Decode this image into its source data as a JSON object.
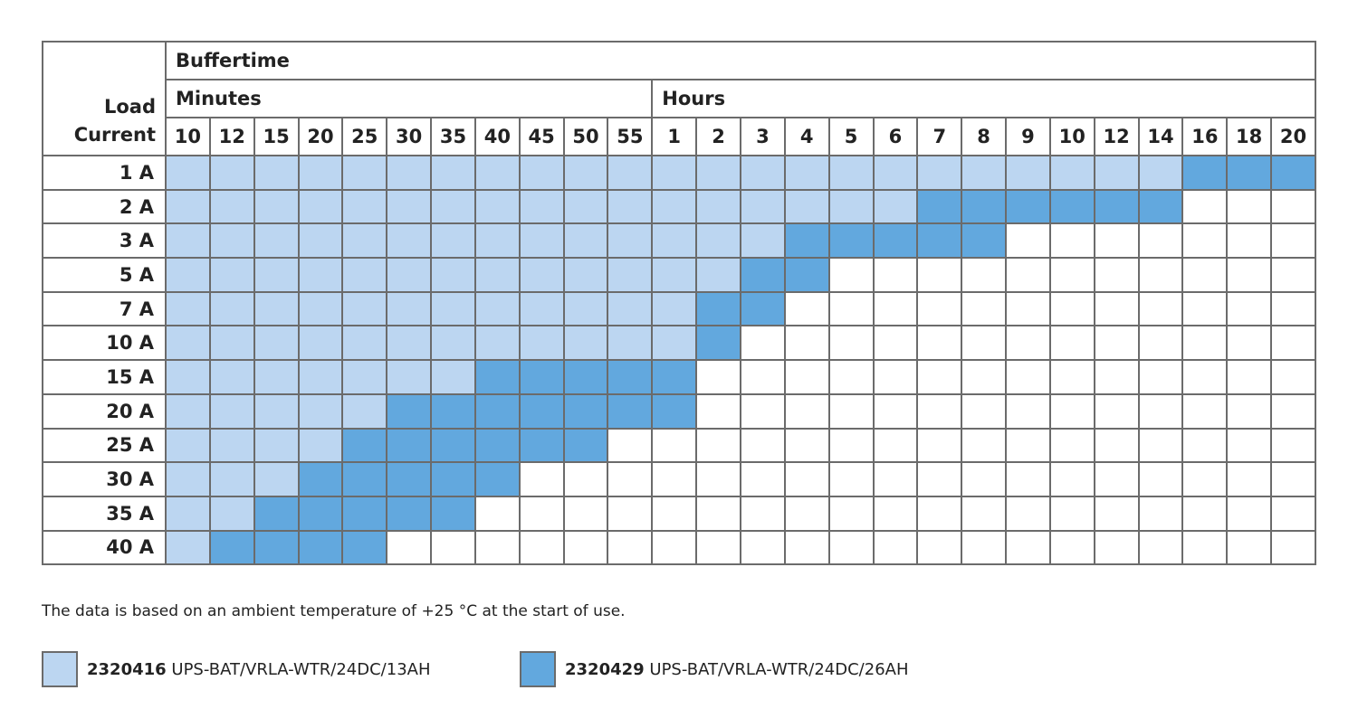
{
  "table": {
    "corner": "Load Current",
    "group": "Buffertime",
    "units": [
      {
        "label": "Minutes",
        "ticks": [
          10,
          12,
          15,
          20,
          25,
          30,
          35,
          40,
          45,
          50,
          55
        ]
      },
      {
        "label": "Hours",
        "ticks": [
          1,
          2,
          3,
          4,
          5,
          6,
          7,
          8,
          9,
          10,
          12,
          14,
          16,
          18,
          20
        ]
      }
    ],
    "rows": [
      {
        "label": "1 A",
        "cells": [
          1,
          1,
          1,
          1,
          1,
          1,
          1,
          1,
          1,
          1,
          1,
          1,
          1,
          1,
          1,
          1,
          1,
          1,
          1,
          1,
          1,
          1,
          1,
          2,
          2,
          2
        ]
      },
      {
        "label": "2 A",
        "cells": [
          1,
          1,
          1,
          1,
          1,
          1,
          1,
          1,
          1,
          1,
          1,
          1,
          1,
          1,
          1,
          1,
          1,
          2,
          2,
          2,
          2,
          2,
          2,
          0,
          0,
          0
        ]
      },
      {
        "label": "3 A",
        "cells": [
          1,
          1,
          1,
          1,
          1,
          1,
          1,
          1,
          1,
          1,
          1,
          1,
          1,
          1,
          2,
          2,
          2,
          2,
          2,
          0,
          0,
          0,
          0,
          0,
          0,
          0
        ]
      },
      {
        "label": "5 A",
        "cells": [
          1,
          1,
          1,
          1,
          1,
          1,
          1,
          1,
          1,
          1,
          1,
          1,
          1,
          2,
          2,
          0,
          0,
          0,
          0,
          0,
          0,
          0,
          0,
          0,
          0,
          0
        ]
      },
      {
        "label": "7 A",
        "cells": [
          1,
          1,
          1,
          1,
          1,
          1,
          1,
          1,
          1,
          1,
          1,
          1,
          2,
          2,
          0,
          0,
          0,
          0,
          0,
          0,
          0,
          0,
          0,
          0,
          0,
          0
        ]
      },
      {
        "label": "10 A",
        "cells": [
          1,
          1,
          1,
          1,
          1,
          1,
          1,
          1,
          1,
          1,
          1,
          1,
          2,
          0,
          0,
          0,
          0,
          0,
          0,
          0,
          0,
          0,
          0,
          0,
          0,
          0
        ]
      },
      {
        "label": "15 A",
        "cells": [
          1,
          1,
          1,
          1,
          1,
          1,
          1,
          2,
          2,
          2,
          2,
          2,
          0,
          0,
          0,
          0,
          0,
          0,
          0,
          0,
          0,
          0,
          0,
          0,
          0,
          0
        ]
      },
      {
        "label": "20 A",
        "cells": [
          1,
          1,
          1,
          1,
          1,
          2,
          2,
          2,
          2,
          2,
          2,
          2,
          0,
          0,
          0,
          0,
          0,
          0,
          0,
          0,
          0,
          0,
          0,
          0,
          0,
          0
        ]
      },
      {
        "label": "25 A",
        "cells": [
          1,
          1,
          1,
          1,
          2,
          2,
          2,
          2,
          2,
          2,
          0,
          0,
          0,
          0,
          0,
          0,
          0,
          0,
          0,
          0,
          0,
          0,
          0,
          0,
          0,
          0
        ]
      },
      {
        "label": "30 A",
        "cells": [
          1,
          1,
          1,
          2,
          2,
          2,
          2,
          2,
          0,
          0,
          0,
          0,
          0,
          0,
          0,
          0,
          0,
          0,
          0,
          0,
          0,
          0,
          0,
          0,
          0,
          0
        ]
      },
      {
        "label": "35 A",
        "cells": [
          1,
          1,
          2,
          2,
          2,
          2,
          2,
          0,
          0,
          0,
          0,
          0,
          0,
          0,
          0,
          0,
          0,
          0,
          0,
          0,
          0,
          0,
          0,
          0,
          0,
          0
        ]
      },
      {
        "label": "40 A",
        "cells": [
          1,
          2,
          2,
          2,
          2,
          0,
          0,
          0,
          0,
          0,
          0,
          0,
          0,
          0,
          0,
          0,
          0,
          0,
          0,
          0,
          0,
          0,
          0,
          0,
          0,
          0
        ]
      }
    ]
  },
  "note": "The data is based on an ambient temperature of +25 °C at the start of use.",
  "legend": [
    {
      "code": "2320416",
      "name": "UPS-BAT/VRLA-WTR/24DC/13AH",
      "color": "#bcd6f1"
    },
    {
      "code": "2320429",
      "name": "UPS-BAT/VRLA-WTR/24DC/26AH",
      "color": "#62a8de"
    }
  ]
}
